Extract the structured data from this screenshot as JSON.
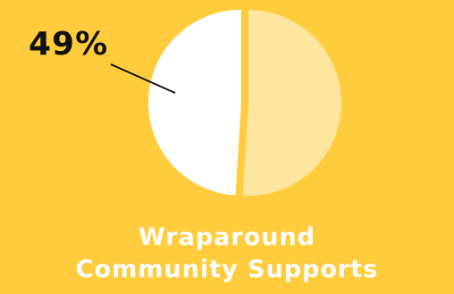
{
  "chart_data": {
    "type": "pie",
    "slices": [
      {
        "value": 49,
        "color": "#FFFFFF"
      },
      {
        "value": 51,
        "color": "#FFE69E"
      }
    ],
    "data_label": "49%",
    "title_lines": [
      "Wraparound",
      "Community Supports"
    ]
  },
  "colors": {
    "background": "#FFCC3D",
    "label_text": "#111111",
    "title_text": "#FFFFFF"
  }
}
